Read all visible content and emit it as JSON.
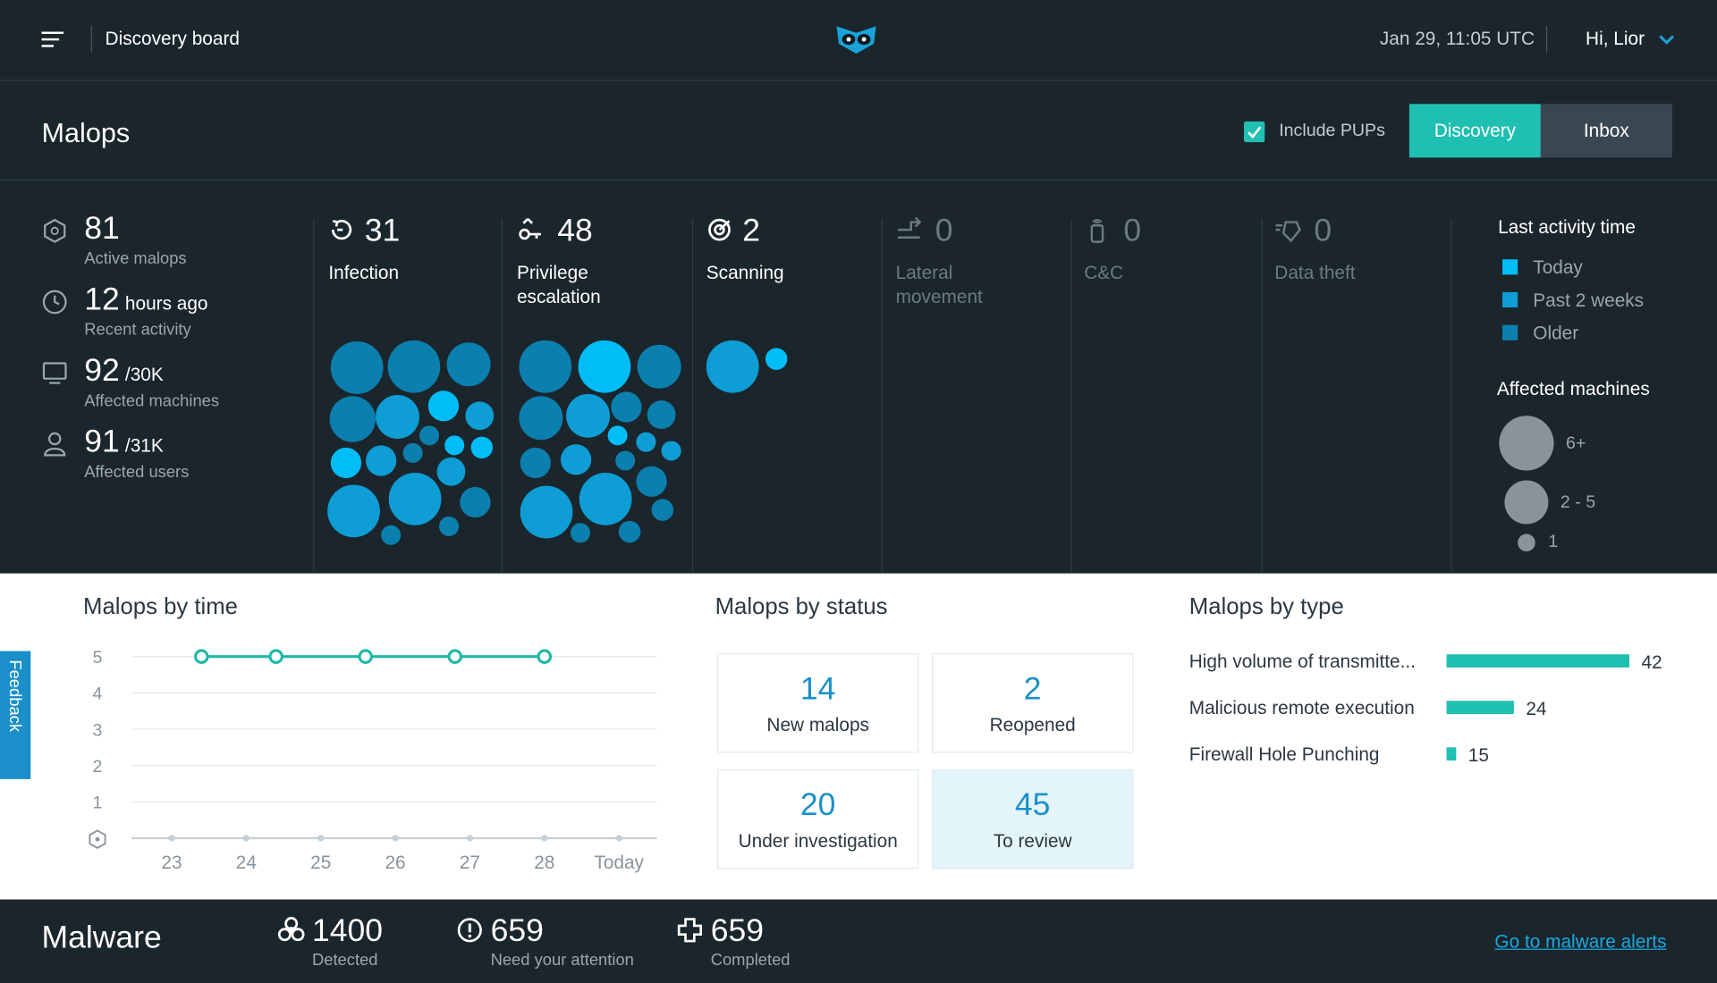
{
  "header": {
    "title": "Discovery board",
    "datetime": "Jan 29, 11:05 UTC",
    "user": "Hi, Lior"
  },
  "malops": {
    "title": "Malops",
    "include_pups": "Include PUPs",
    "tabs": [
      "Discovery",
      "Inbox"
    ],
    "stats": [
      {
        "value": 81,
        "label": "Active malops"
      },
      {
        "value": 12,
        "unit": "hours ago",
        "label": "Recent activity"
      },
      {
        "value": 92,
        "unit": "/30K",
        "label": "Affected machines"
      },
      {
        "value": 91,
        "unit": "/31K",
        "label": "Affected users"
      }
    ],
    "categories": [
      {
        "count": 31,
        "name": "Infection"
      },
      {
        "count": 48,
        "name": "Privilege escalation"
      },
      {
        "count": 2,
        "name": "Scanning"
      },
      {
        "count": 0,
        "name": "Lateral movement"
      },
      {
        "count": 0,
        "name": "C&C"
      },
      {
        "count": 0,
        "name": "Data theft"
      }
    ],
    "legend": {
      "activity_title": "Last activity time",
      "activity": [
        {
          "name": "Today",
          "color": "#00bdf7"
        },
        {
          "name": "Past 2 weeks",
          "color": "#0e9dd4"
        },
        {
          "name": "Older",
          "color": "#0b7fae"
        }
      ],
      "machines_title": "Affected machines",
      "machines": [
        "6+",
        "2 - 5",
        "1"
      ]
    }
  },
  "chart_data": [
    {
      "type": "line",
      "title": "Malops by time",
      "x": [
        23.4,
        24.4,
        25.6,
        26.8,
        28
      ],
      "values": [
        5,
        5,
        5,
        5,
        5
      ],
      "color": "#1fb8a6",
      "xlim": [
        22.46,
        29.51
      ],
      "xticks": [
        23,
        24,
        25,
        26,
        27,
        28,
        {
          "value": 29,
          "label": "Today"
        }
      ],
      "ylim": [
        0,
        5
      ],
      "yticks": [
        1,
        2,
        3,
        4,
        5
      ],
      "grid": true
    },
    {
      "type": "bar",
      "orientation": "horizontal",
      "title": "Malops by type",
      "categories": [
        "High volume of transmitte...",
        "Malicious remote execution",
        "Firewall Hole Punching"
      ],
      "values": [
        42,
        24,
        15
      ],
      "color": "#1fbfb1",
      "xlim": [
        13.5,
        42
      ]
    }
  ],
  "malops_by_status": {
    "title": "Malops by status",
    "cards": [
      {
        "value": 14,
        "label": "New malops"
      },
      {
        "value": 2,
        "label": "Reopened"
      },
      {
        "value": 20,
        "label": "Under investigation"
      },
      {
        "value": 45,
        "label": "To review"
      }
    ]
  },
  "malware": {
    "title": "Malware",
    "stats": [
      {
        "value": 1400,
        "label": "Detected"
      },
      {
        "value": 659,
        "label": "Need your attention"
      },
      {
        "value": 659,
        "label": "Completed"
      }
    ],
    "link": "Go to malware alerts"
  },
  "feedback": "Feedback"
}
